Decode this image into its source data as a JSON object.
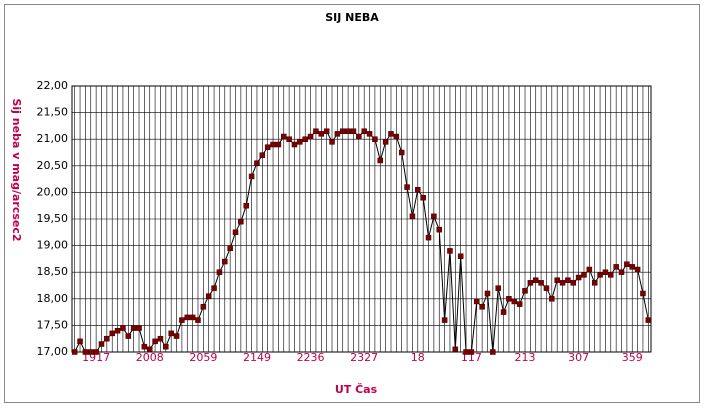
{
  "chart_data": {
    "type": "line",
    "title": "SIJ NEBA",
    "y_label": "Sij neba v mag/arcsec2",
    "x_label": "UT Čas",
    "categories": [
      null,
      null,
      null,
      null,
      "1917",
      null,
      null,
      null,
      null,
      null,
      null,
      null,
      null,
      null,
      "2008",
      null,
      null,
      null,
      null,
      null,
      null,
      null,
      null,
      null,
      "2059",
      null,
      null,
      null,
      null,
      null,
      null,
      null,
      null,
      null,
      "2149",
      null,
      null,
      null,
      null,
      null,
      null,
      null,
      null,
      null,
      "2236",
      null,
      null,
      null,
      null,
      null,
      null,
      null,
      null,
      null,
      "2327",
      null,
      null,
      null,
      null,
      null,
      null,
      null,
      null,
      null,
      "18",
      null,
      null,
      null,
      null,
      null,
      null,
      null,
      null,
      null,
      "117",
      null,
      null,
      null,
      null,
      null,
      null,
      null,
      null,
      null,
      "213",
      null,
      null,
      null,
      null,
      null,
      null,
      null,
      null,
      null,
      "307",
      null,
      null,
      null,
      null,
      null,
      null,
      null,
      null,
      null,
      "359",
      null,
      null,
      null
    ],
    "series": [
      {
        "name": "Sij neba",
        "color": "#800000",
        "values": [
          17.0,
          17.2,
          17.0,
          17.0,
          17.0,
          17.15,
          17.25,
          17.35,
          17.4,
          17.45,
          17.3,
          17.45,
          17.45,
          17.1,
          17.05,
          17.2,
          17.25,
          17.1,
          17.35,
          17.3,
          17.6,
          17.65,
          17.65,
          17.6,
          17.85,
          18.05,
          18.2,
          18.5,
          18.7,
          18.95,
          19.25,
          19.45,
          19.75,
          20.3,
          20.55,
          20.7,
          20.85,
          20.9,
          20.9,
          21.05,
          21.0,
          20.9,
          20.95,
          21.0,
          21.05,
          21.15,
          21.1,
          21.15,
          20.95,
          21.1,
          21.15,
          21.15,
          21.15,
          21.05,
          21.15,
          21.1,
          21.0,
          20.6,
          20.95,
          21.1,
          21.05,
          20.75,
          20.1,
          19.55,
          20.05,
          19.9,
          19.15,
          19.55,
          19.3,
          17.6,
          18.9,
          17.05,
          18.8,
          17.0,
          17.0,
          17.95,
          17.85,
          18.1,
          17.0,
          18.2,
          17.75,
          18.0,
          17.95,
          17.9,
          18.15,
          18.3,
          18.35,
          18.3,
          18.2,
          18.0,
          18.35,
          18.3,
          18.35,
          18.3,
          18.4,
          18.45,
          18.55,
          18.3,
          18.45,
          18.5,
          18.45,
          18.6,
          18.5,
          18.65,
          18.6,
          18.55,
          18.1,
          17.6
        ]
      }
    ],
    "ylim": [
      17,
      22
    ],
    "yticks": [
      {
        "value": 17,
        "label": "17,00"
      },
      {
        "value": 17.5,
        "label": "17,50"
      },
      {
        "value": 18,
        "label": "18,00"
      },
      {
        "value": 18.5,
        "label": "18,50"
      },
      {
        "value": 19,
        "label": "19,00"
      },
      {
        "value": 19.5,
        "label": "19,50"
      },
      {
        "value": 20,
        "label": "20,00"
      },
      {
        "value": 20.5,
        "label": "20,50"
      },
      {
        "value": 21,
        "label": "21,00"
      },
      {
        "value": 21.5,
        "label": "21,50"
      },
      {
        "value": 22,
        "label": "22,00"
      }
    ],
    "grid": true
  }
}
